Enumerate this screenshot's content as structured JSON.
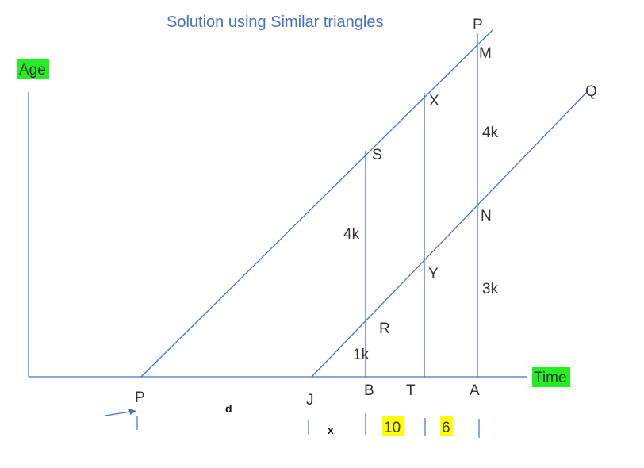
{
  "title": "Solution using Similar triangles",
  "axes": {
    "y_label": "Age",
    "x_label": "Time"
  },
  "colors": {
    "line": "#4472C4",
    "axis_label_highlight": "#22EE22",
    "value_highlight": "#FFFF00"
  },
  "points": {
    "top_line_end": "P",
    "top_vertical": "M",
    "mid_vertical_top": "X",
    "left_vertical_top": "S",
    "bottom_line_end": "Q",
    "on_right_vertical": "N",
    "on_mid_vertical": "Y",
    "on_left_vertical": "R"
  },
  "ratios": {
    "right_upper": "4k",
    "right_lower": "3k",
    "left_upper": "4k",
    "left_lower": "1k"
  },
  "x_axis_labels": {
    "origin_top_line": "P",
    "origin_bottom_line": "J",
    "foot_left": "B",
    "foot_mid": "T",
    "foot_right": "A"
  },
  "segments": {
    "d": "d",
    "x": "x",
    "bt": "10",
    "ta": "6"
  }
}
